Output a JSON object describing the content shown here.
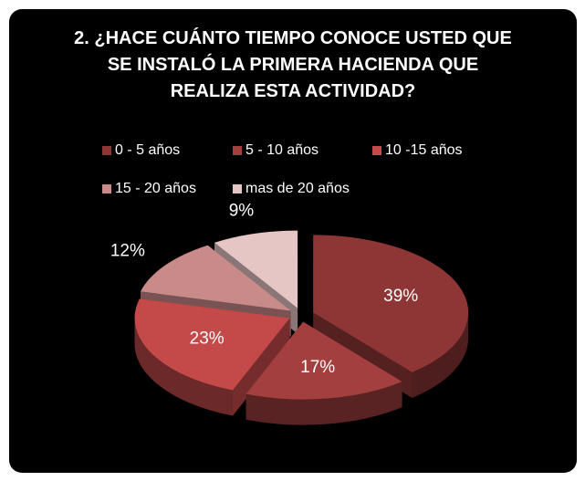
{
  "chart_data": {
    "type": "pie3d",
    "title": "2. ¿HACE CUÁNTO TIEMPO CONOCE USTED QUE SE INSTALÓ LA PRIMERA HACIENDA QUE REALIZA ESTA ACTIVIDAD?",
    "categories": [
      "0 -   5 años",
      "5 - 10 años",
      "10 -15 años",
      "15 - 20 años",
      "mas de 20 años"
    ],
    "values": [
      39,
      17,
      23,
      12,
      9
    ],
    "value_labels": [
      "39%",
      "17%",
      "23%",
      "12%",
      "9%"
    ],
    "colors": [
      "#8e3535",
      "#a43f3f",
      "#c44a4a",
      "#c98a8a",
      "#e6c5c5"
    ],
    "legend": "top"
  }
}
